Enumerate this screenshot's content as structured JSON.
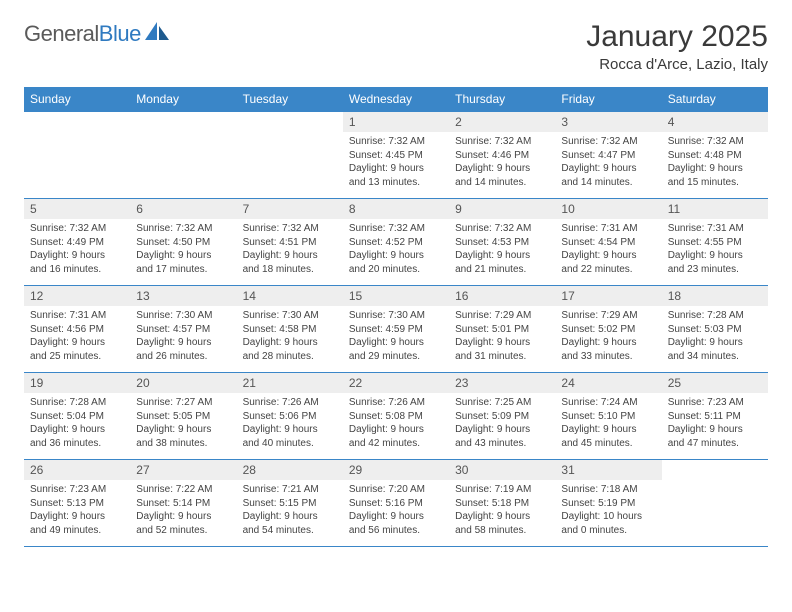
{
  "logo": {
    "word1": "General",
    "word2": "Blue"
  },
  "title": "January 2025",
  "location": "Rocca d'Arce, Lazio, Italy",
  "colors": {
    "header_bg": "#3a86c8",
    "header_text": "#ffffff",
    "num_bg": "#eeeeee",
    "rule": "#3a86c8",
    "text": "#444444",
    "logo_gray": "#5a5a5a",
    "logo_blue": "#2f7ac0"
  },
  "day_names": [
    "Sunday",
    "Monday",
    "Tuesday",
    "Wednesday",
    "Thursday",
    "Friday",
    "Saturday"
  ],
  "weeks": [
    [
      null,
      null,
      null,
      {
        "n": "1",
        "sr": "7:32 AM",
        "ss": "4:45 PM",
        "dl": "9 hours and 13 minutes."
      },
      {
        "n": "2",
        "sr": "7:32 AM",
        "ss": "4:46 PM",
        "dl": "9 hours and 14 minutes."
      },
      {
        "n": "3",
        "sr": "7:32 AM",
        "ss": "4:47 PM",
        "dl": "9 hours and 14 minutes."
      },
      {
        "n": "4",
        "sr": "7:32 AM",
        "ss": "4:48 PM",
        "dl": "9 hours and 15 minutes."
      }
    ],
    [
      {
        "n": "5",
        "sr": "7:32 AM",
        "ss": "4:49 PM",
        "dl": "9 hours and 16 minutes."
      },
      {
        "n": "6",
        "sr": "7:32 AM",
        "ss": "4:50 PM",
        "dl": "9 hours and 17 minutes."
      },
      {
        "n": "7",
        "sr": "7:32 AM",
        "ss": "4:51 PM",
        "dl": "9 hours and 18 minutes."
      },
      {
        "n": "8",
        "sr": "7:32 AM",
        "ss": "4:52 PM",
        "dl": "9 hours and 20 minutes."
      },
      {
        "n": "9",
        "sr": "7:32 AM",
        "ss": "4:53 PM",
        "dl": "9 hours and 21 minutes."
      },
      {
        "n": "10",
        "sr": "7:31 AM",
        "ss": "4:54 PM",
        "dl": "9 hours and 22 minutes."
      },
      {
        "n": "11",
        "sr": "7:31 AM",
        "ss": "4:55 PM",
        "dl": "9 hours and 23 minutes."
      }
    ],
    [
      {
        "n": "12",
        "sr": "7:31 AM",
        "ss": "4:56 PM",
        "dl": "9 hours and 25 minutes."
      },
      {
        "n": "13",
        "sr": "7:30 AM",
        "ss": "4:57 PM",
        "dl": "9 hours and 26 minutes."
      },
      {
        "n": "14",
        "sr": "7:30 AM",
        "ss": "4:58 PM",
        "dl": "9 hours and 28 minutes."
      },
      {
        "n": "15",
        "sr": "7:30 AM",
        "ss": "4:59 PM",
        "dl": "9 hours and 29 minutes."
      },
      {
        "n": "16",
        "sr": "7:29 AM",
        "ss": "5:01 PM",
        "dl": "9 hours and 31 minutes."
      },
      {
        "n": "17",
        "sr": "7:29 AM",
        "ss": "5:02 PM",
        "dl": "9 hours and 33 minutes."
      },
      {
        "n": "18",
        "sr": "7:28 AM",
        "ss": "5:03 PM",
        "dl": "9 hours and 34 minutes."
      }
    ],
    [
      {
        "n": "19",
        "sr": "7:28 AM",
        "ss": "5:04 PM",
        "dl": "9 hours and 36 minutes."
      },
      {
        "n": "20",
        "sr": "7:27 AM",
        "ss": "5:05 PM",
        "dl": "9 hours and 38 minutes."
      },
      {
        "n": "21",
        "sr": "7:26 AM",
        "ss": "5:06 PM",
        "dl": "9 hours and 40 minutes."
      },
      {
        "n": "22",
        "sr": "7:26 AM",
        "ss": "5:08 PM",
        "dl": "9 hours and 42 minutes."
      },
      {
        "n": "23",
        "sr": "7:25 AM",
        "ss": "5:09 PM",
        "dl": "9 hours and 43 minutes."
      },
      {
        "n": "24",
        "sr": "7:24 AM",
        "ss": "5:10 PM",
        "dl": "9 hours and 45 minutes."
      },
      {
        "n": "25",
        "sr": "7:23 AM",
        "ss": "5:11 PM",
        "dl": "9 hours and 47 minutes."
      }
    ],
    [
      {
        "n": "26",
        "sr": "7:23 AM",
        "ss": "5:13 PM",
        "dl": "9 hours and 49 minutes."
      },
      {
        "n": "27",
        "sr": "7:22 AM",
        "ss": "5:14 PM",
        "dl": "9 hours and 52 minutes."
      },
      {
        "n": "28",
        "sr": "7:21 AM",
        "ss": "5:15 PM",
        "dl": "9 hours and 54 minutes."
      },
      {
        "n": "29",
        "sr": "7:20 AM",
        "ss": "5:16 PM",
        "dl": "9 hours and 56 minutes."
      },
      {
        "n": "30",
        "sr": "7:19 AM",
        "ss": "5:18 PM",
        "dl": "9 hours and 58 minutes."
      },
      {
        "n": "31",
        "sr": "7:18 AM",
        "ss": "5:19 PM",
        "dl": "10 hours and 0 minutes."
      },
      null
    ]
  ],
  "labels": {
    "sunrise": "Sunrise:",
    "sunset": "Sunset:",
    "daylight": "Daylight:"
  }
}
